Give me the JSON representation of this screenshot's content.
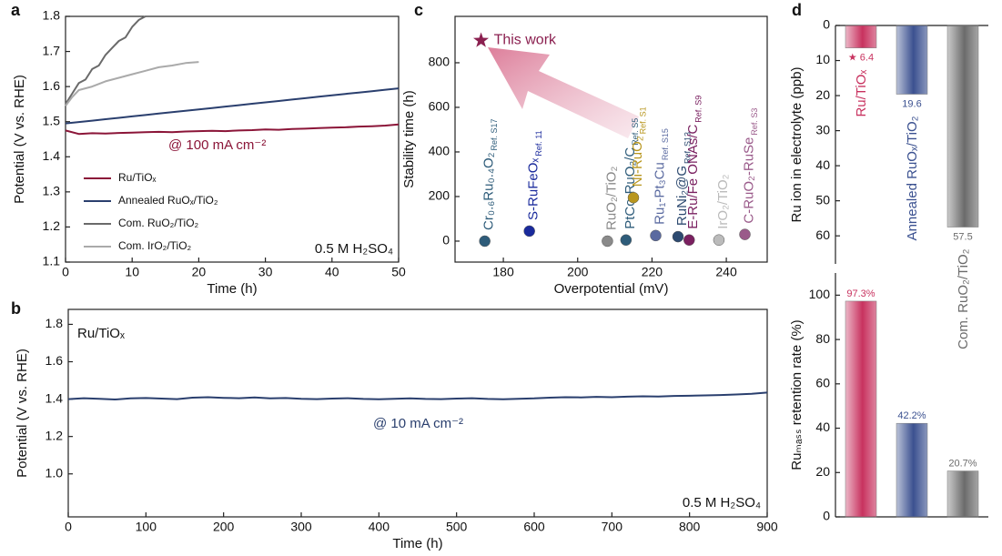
{
  "chart_data": [
    {
      "type": "line",
      "panel_label": "a",
      "x_label": "Time (h)",
      "y_label": "Potential (V vs. RHE)",
      "xlim": [
        0,
        50
      ],
      "ylim": [
        1.1,
        1.8
      ],
      "xticks": [
        0,
        10,
        20,
        30,
        40,
        50
      ],
      "yticks": [
        1.1,
        1.2,
        1.3,
        1.4,
        1.5,
        1.6,
        1.7,
        1.8
      ],
      "legend": "lower left",
      "legend_lines": true,
      "annotations": [
        {
          "text": "@ 100 mA cm⁻²",
          "color": "#8b1538"
        },
        {
          "text": "0.5 M H₂SO₄",
          "color": "#111111"
        }
      ],
      "series": [
        {
          "name": "Ru/TiOₓ",
          "color": "#8b1538",
          "x": [
            0,
            2,
            4,
            6,
            8,
            10,
            12,
            14,
            16,
            18,
            20,
            22,
            24,
            26,
            28,
            30,
            32,
            34,
            36,
            38,
            40,
            42,
            44,
            46,
            48,
            50
          ],
          "values": [
            1.475,
            1.465,
            1.467,
            1.466,
            1.468,
            1.469,
            1.47,
            1.471,
            1.47,
            1.472,
            1.473,
            1.474,
            1.473,
            1.475,
            1.476,
            1.478,
            1.477,
            1.479,
            1.48,
            1.482,
            1.483,
            1.484,
            1.486,
            1.487,
            1.489,
            1.492
          ]
        },
        {
          "name": "Annealed RuOₓ/TiO₂",
          "color": "#2a3f6e",
          "x": [
            0,
            2,
            4,
            6,
            8,
            10,
            12,
            14,
            16,
            18,
            20,
            22,
            24,
            26,
            28,
            30,
            32,
            34,
            36,
            38,
            40,
            42,
            44,
            46,
            48,
            50
          ],
          "values": [
            1.495,
            1.499,
            1.503,
            1.507,
            1.511,
            1.515,
            1.519,
            1.523,
            1.527,
            1.531,
            1.535,
            1.539,
            1.543,
            1.547,
            1.551,
            1.555,
            1.559,
            1.563,
            1.567,
            1.571,
            1.575,
            1.579,
            1.583,
            1.587,
            1.591,
            1.595
          ]
        },
        {
          "name": "Com. RuO₂/TiO₂",
          "color": "#6a6a6a",
          "x": [
            0,
            1,
            2,
            3,
            4,
            5,
            6,
            7,
            8,
            9,
            10,
            11,
            12
          ],
          "values": [
            1.55,
            1.58,
            1.61,
            1.62,
            1.65,
            1.66,
            1.69,
            1.71,
            1.73,
            1.74,
            1.77,
            1.79,
            1.8
          ]
        },
        {
          "name": "Com. IrO₂/TiO₂",
          "color": "#aaaaaa",
          "x": [
            0,
            1,
            2,
            4,
            6,
            8,
            10,
            12,
            14,
            16,
            18,
            20
          ],
          "values": [
            1.545,
            1.57,
            1.59,
            1.6,
            1.615,
            1.625,
            1.635,
            1.645,
            1.655,
            1.66,
            1.667,
            1.67
          ]
        }
      ]
    },
    {
      "type": "line",
      "panel_label": "b",
      "x_label": "Time (h)",
      "y_label": "Potential (V vs. RHE)",
      "xlim": [
        0,
        900
      ],
      "ylim": [
        0.77,
        1.88
      ],
      "xticks": [
        0,
        100,
        200,
        300,
        400,
        500,
        600,
        700,
        800,
        900
      ],
      "yticks": [
        {
          "value": 1,
          "label": "1.0"
        },
        1.2,
        1.4,
        1.6,
        1.8
      ],
      "legend": "upper left",
      "legend_lines": false,
      "annotations": [
        {
          "text": "@ 10 mA cm⁻²",
          "color": "#2a3f6e"
        },
        {
          "text": "0.5 M H₂SO₄",
          "color": "#111111"
        }
      ],
      "series": [
        {
          "name": "Ru/TiOₓ",
          "color": "#2a3f6e",
          "x": [
            0,
            20,
            40,
            60,
            80,
            100,
            120,
            140,
            160,
            180,
            200,
            220,
            240,
            260,
            280,
            300,
            320,
            340,
            360,
            380,
            400,
            420,
            440,
            460,
            480,
            500,
            520,
            540,
            560,
            580,
            600,
            620,
            640,
            660,
            680,
            700,
            720,
            740,
            760,
            780,
            800,
            820,
            840,
            860,
            880,
            900
          ],
          "values": [
            1.4,
            1.405,
            1.402,
            1.398,
            1.404,
            1.406,
            1.403,
            1.4,
            1.408,
            1.41,
            1.407,
            1.405,
            1.409,
            1.404,
            1.406,
            1.402,
            1.4,
            1.403,
            1.405,
            1.401,
            1.399,
            1.402,
            1.404,
            1.401,
            1.4,
            1.403,
            1.405,
            1.401,
            1.399,
            1.402,
            1.404,
            1.408,
            1.41,
            1.409,
            1.412,
            1.41,
            1.413,
            1.415,
            1.414,
            1.417,
            1.418,
            1.42,
            1.422,
            1.425,
            1.428,
            1.435
          ]
        }
      ]
    },
    {
      "type": "scatter",
      "panel_label": "c",
      "x_label": "Overpotential (mV)",
      "y_label": "Stability time (h)",
      "xlim": [
        167,
        251
      ],
      "ylim": [
        -94,
        1008
      ],
      "xticks": [
        180,
        200,
        220,
        240
      ],
      "yticks": [
        0,
        200,
        400,
        600,
        800
      ],
      "highlight": {
        "label": "This work",
        "x": 174,
        "y": 900,
        "color": "#8b2050"
      },
      "points": [
        {
          "label": "Cr₀.₆Ru₀.₄O₂",
          "ref": "Ref. S17",
          "x": 175,
          "y": 0,
          "color": "#2e5c7a"
        },
        {
          "label": "S-RuFeOₓ",
          "ref": "Ref. 11",
          "x": 187,
          "y": 45,
          "color": "#1a2a9c"
        },
        {
          "label": "RuO₂/TiO₂",
          "x": 208,
          "y": 0,
          "color": "#8a8a8a"
        },
        {
          "label": "PtCo-RuO₂/C",
          "ref": "Ref. S5",
          "x": 213,
          "y": 5,
          "color": "#2e5c7a"
        },
        {
          "label": "Ni-RuO₂",
          "ref": "Ref. S1",
          "x": 215,
          "y": 195,
          "color": "#b8961e"
        },
        {
          "label": "Ru₁-Pt₃Cu",
          "ref": "Ref. S15",
          "x": 221,
          "y": 25,
          "color": "#5a6aa0"
        },
        {
          "label": "RuNi₂@G",
          "ref": "Ref. S13",
          "x": 227,
          "y": 20,
          "color": "#2d4a70"
        },
        {
          "label": "E-Ru/Fe ONAs/C",
          "ref": "Ref. S9",
          "x": 230,
          "y": 5,
          "color": "#7a2060"
        },
        {
          "label": "IrO₂/TiO₂",
          "x": 238,
          "y": 5,
          "color": "#bbbbbb"
        },
        {
          "label": "C-RuO₂-RuSe",
          "ref": "Ref. S3",
          "x": 245,
          "y": 30,
          "color": "#9a5a8a"
        }
      ]
    },
    {
      "type": "bar",
      "panel_label": "d",
      "y_label": "Ru ion in electrolyte (ppb)",
      "y_inverted": true,
      "ylim": [
        0,
        68
      ],
      "yticks": [
        0,
        10,
        20,
        30,
        40,
        50,
        60
      ],
      "categories": [
        "Ru/TiOₓ",
        "Annealed RuOₓ/TiO₂",
        "Com. RuO₂/TiO₂"
      ],
      "colors": [
        "#c8325f",
        "#3b5190",
        "#6b6b6b"
      ],
      "values": [
        6.4,
        19.6,
        57.5
      ],
      "value_labels": [
        "★ 6.4",
        "19.6",
        "57.5"
      ]
    },
    {
      "type": "bar",
      "y_label": "Ruₘₐₛₛ retention rate (%)",
      "ylim": [
        0,
        110
      ],
      "yticks": [
        0,
        20,
        40,
        60,
        80,
        100
      ],
      "colors": [
        "#c8325f",
        "#3b5190",
        "#6b6b6b"
      ],
      "values": [
        97.3,
        42.2,
        20.7
      ],
      "value_labels": [
        "97.3%",
        "42.2%",
        "20.7%"
      ]
    }
  ]
}
